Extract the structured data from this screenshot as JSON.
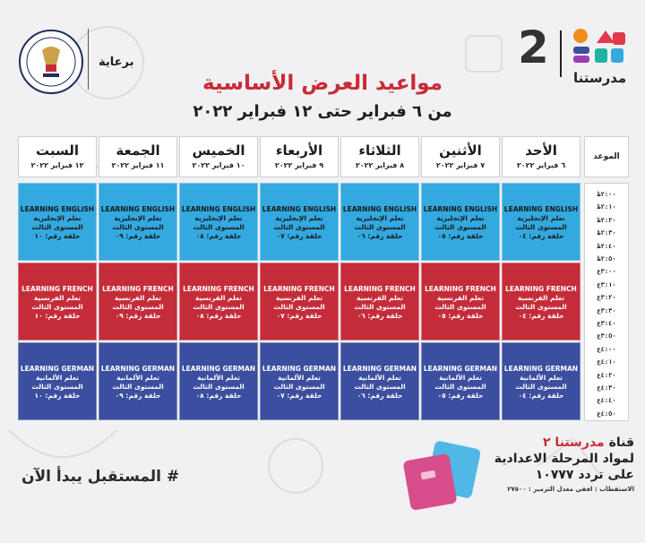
{
  "header": {
    "logo_number": "2",
    "logo_text": "مدرستنا",
    "sponsor_label": "برعاية",
    "title": "مواعيد العرض الأساسية",
    "subtitle": "من ٦ فبراير حتى ١٢ فبراير ٢٠٢٢"
  },
  "schedule": {
    "time_header": "الموعد",
    "days": [
      {
        "name": "الأحد",
        "date": "٦ فبراير ٢٠٢٢"
      },
      {
        "name": "الأثنين",
        "date": "٧ فبراير ٢٠٢٢"
      },
      {
        "name": "الثلاثاء",
        "date": "٨ فبراير ٢٠٢٢"
      },
      {
        "name": "الأربعاء",
        "date": "٩ فبراير ٢٠٢٢"
      },
      {
        "name": "الخميس",
        "date": "١٠ فبراير ٢٠٢٢"
      },
      {
        "name": "الجمعة",
        "date": "١١ فبراير ٢٠٢٢"
      },
      {
        "name": "السبت",
        "date": "١٢ فبراير ٢٠٢٢"
      }
    ],
    "times": [
      "٢:٠٠ظ",
      "٢:١٠ظ",
      "٢:٢٠ظ",
      "٢:٣٠ظ",
      "٢:٤٠ظ",
      "٢:٥٠ظ",
      "٣:٠٠ع",
      "٣:١٠ع",
      "٣:٢٠ع",
      "٣:٣٠ع",
      "٣:٤٠ع",
      "٣:٥٠ع",
      "٤:٠٠ع",
      "٤:١٠ع",
      "٤:٢٠ع",
      "٤:٣٠ع",
      "٤:٤٠ع",
      "٤:٥٠ع"
    ],
    "blocks": [
      {
        "kind": "english",
        "title": "LEARNING ENGLISH",
        "subject": "تعلم الإنجليزية",
        "level": "المستوى الثالث",
        "episodes": [
          "حلقة رقم: ٠٤",
          "حلقة رقم: ٠٥",
          "حلقة رقم: ٠٦",
          "حلقة رقم: ٠٧",
          "حلقة رقم: ٠٨",
          "حلقة رقم: ٠٩",
          "حلقة رقم: ١٠"
        ]
      },
      {
        "kind": "french",
        "title": "LEARNING FRENCH",
        "subject": "تعلم الفرنسية",
        "level": "المستوى الثالث",
        "episodes": [
          "حلقة رقم: ٠٤",
          "حلقة رقم: ٠٥",
          "حلقة رقم: ٠٦",
          "حلقة رقم: ٠٧",
          "حلقة رقم: ٠٨",
          "حلقة رقم: ٠٩",
          "حلقة رقم: ١٠"
        ]
      },
      {
        "kind": "german",
        "title": "LEARNING GERMAN",
        "subject": "تعلم الألمانية",
        "level": "المستوى الثالث",
        "episodes": [
          "حلقة رقم: ٠٤",
          "حلقة رقم: ٠٥",
          "حلقة رقم: ٠٦",
          "حلقة رقم: ٠٧",
          "حلقة رقم: ٠٨",
          "حلقة رقم: ٠٩",
          "حلقة رقم: ١٠"
        ]
      }
    ]
  },
  "footer": {
    "hashtag": "# المستقبل يبدأ الآن",
    "channel_prefix": "قناة",
    "channel_name": "مدرستنا ٢",
    "line2": "لمواد المرحلة الاعدادية",
    "line3": "على تردد ١٠٧٧٧",
    "line4": "الاستقطاب : افقي معدل الترميز : ٢٧٥٠٠"
  },
  "colors": {
    "english": "#33a9e0",
    "french": "#c52c3a",
    "german": "#3b4ea0",
    "title": "#c92b35"
  }
}
